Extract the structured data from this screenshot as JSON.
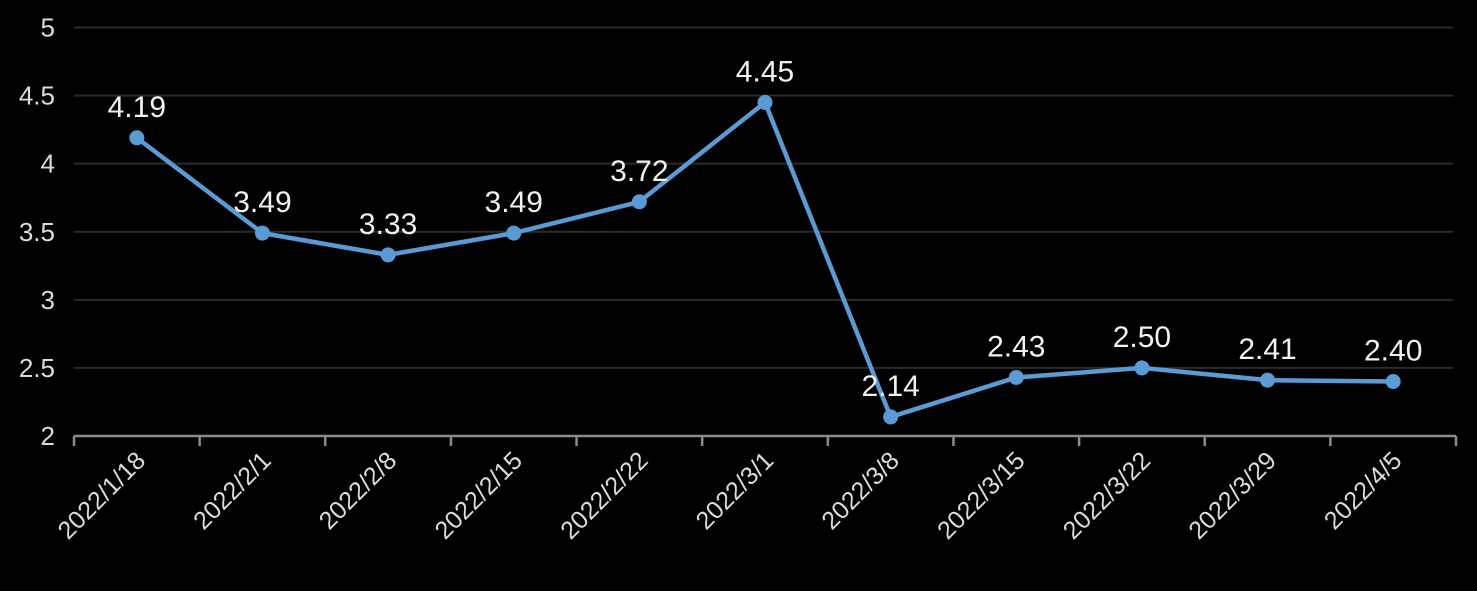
{
  "chart_data": {
    "type": "line",
    "title": "",
    "xlabel": "",
    "ylabel": "",
    "categories": [
      "2022/1/18",
      "2022/2/1",
      "2022/2/8",
      "2022/2/15",
      "2022/2/22",
      "2022/3/1",
      "2022/3/8",
      "2022/3/15",
      "2022/3/22",
      "2022/3/29",
      "2022/4/5"
    ],
    "series": [
      {
        "name": "",
        "values": [
          4.19,
          3.49,
          3.33,
          3.49,
          3.72,
          4.45,
          2.14,
          2.43,
          2.5,
          2.41,
          2.4
        ],
        "data_labels": [
          "4.19",
          "3.49",
          "3.33",
          "3.49",
          "3.72",
          "4.45",
          "2.14",
          "2.43",
          "2.50",
          "2.41",
          "2.40"
        ]
      }
    ],
    "ylim": [
      2,
      5
    ],
    "y_ticks": [
      2,
      2.5,
      3,
      3.5,
      4,
      4.5,
      5
    ],
    "y_tick_labels": [
      "2",
      "2.5",
      "3",
      "3.5",
      "4",
      "4.5",
      "5"
    ],
    "grid": true,
    "legend_position": "none",
    "colors": {
      "background": "#000000",
      "series_line": "#5b9bd5",
      "marker_fill": "#5b9bd5",
      "gridline": "#2b2b2b",
      "axis_line": "#8c8c8c",
      "data_label_text": "#f2f2f2",
      "axis_tick_text": "#dcdcdc"
    }
  }
}
